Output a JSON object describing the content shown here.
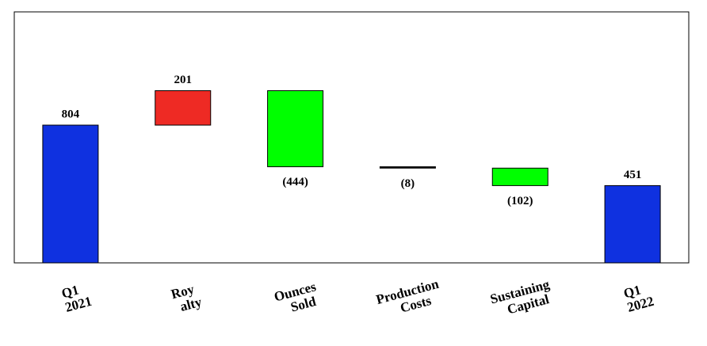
{
  "chart_data": {
    "type": "waterfall",
    "categories": [
      [
        "Q1",
        "2021"
      ],
      [
        "Roy",
        "alty"
      ],
      [
        "Ounces",
        "Sold"
      ],
      [
        "Production",
        "Costs"
      ],
      [
        "Sustaining",
        "Capital"
      ],
      [
        "Q1",
        "2022"
      ]
    ],
    "values": [
      804,
      201,
      -444,
      -8,
      -102,
      451
    ],
    "value_labels": [
      "804",
      "201",
      "(444)",
      "(8)",
      "(102)",
      "451"
    ],
    "colors": [
      "#0f31e0",
      "#ee2a24",
      "#00ff00",
      "#000000",
      "#00ff00",
      "#0f31e0"
    ],
    "ylim": [
      0,
      1465
    ]
  }
}
